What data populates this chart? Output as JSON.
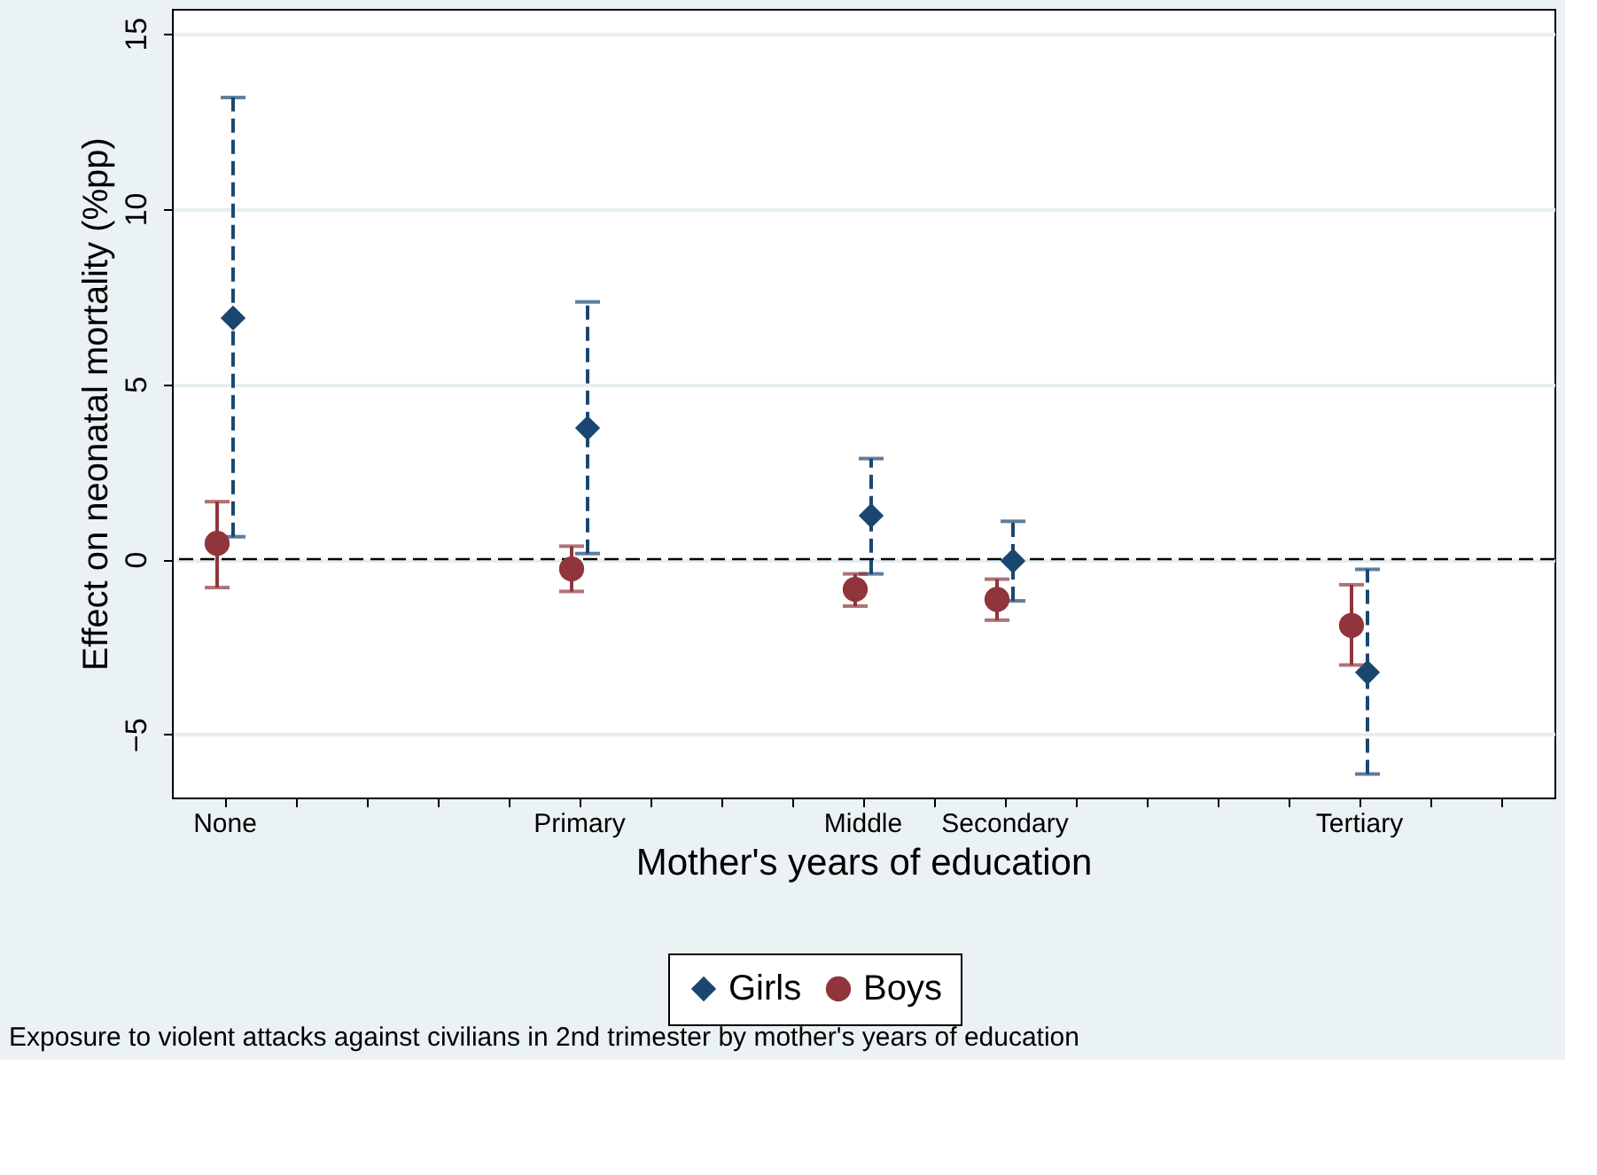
{
  "chart_data": {
    "type": "scatter",
    "xlabel": "Mother's years of education",
    "ylabel": "Effect on neonatal mortality (%pp)",
    "annotations": [
      "Exposure to violent attacks against civilians in 2nd trimester by mother's years of education"
    ],
    "categories": [
      "None",
      null,
      null,
      null,
      null,
      "Primary",
      null,
      null,
      null,
      "Middle",
      null,
      "Secondary",
      null,
      null,
      null,
      null,
      "Tertiary",
      null,
      null
    ],
    "ylim": [
      -6.8,
      15.7
    ],
    "yticks": [
      -5,
      0,
      5,
      10,
      15
    ],
    "series": [
      {
        "name": "Girls",
        "color": "#1a476f",
        "marker": "diamond",
        "line_style": "dashed",
        "values": [
          6.88,
          null,
          null,
          null,
          null,
          3.74,
          null,
          null,
          null,
          1.24,
          null,
          -0.05,
          null,
          null,
          null,
          null,
          -3.23,
          null,
          null
        ],
        "errors": [
          [
            0.64,
            13.17
          ],
          null,
          null,
          null,
          null,
          [
            0.16,
            7.34
          ],
          null,
          null,
          null,
          [
            -0.42,
            2.87
          ],
          null,
          [
            -1.19,
            1.08
          ],
          null,
          null,
          null,
          null,
          [
            -6.13,
            -0.29
          ],
          null,
          null
        ]
      },
      {
        "name": "Boys",
        "color": "#90353b",
        "marker": "circle",
        "line_style": "solid",
        "values": [
          0.45,
          null,
          null,
          null,
          null,
          -0.28,
          null,
          null,
          null,
          -0.86,
          null,
          -1.15,
          null,
          null,
          null,
          null,
          -1.89,
          null,
          null
        ],
        "errors": [
          [
            -0.81,
            1.64
          ],
          null,
          null,
          null,
          null,
          [
            -0.92,
            0.37
          ],
          null,
          null,
          null,
          [
            -1.34,
            -0.42
          ],
          null,
          [
            -1.74,
            -0.57
          ],
          null,
          null,
          null,
          null,
          [
            -3.02,
            -0.73
          ],
          null,
          null
        ]
      }
    ],
    "ref_lines": [
      {
        "axis": "y",
        "value": 0,
        "line_style": "dashed",
        "color": "#000000"
      }
    ],
    "grid": "y",
    "legend": "bottom"
  }
}
